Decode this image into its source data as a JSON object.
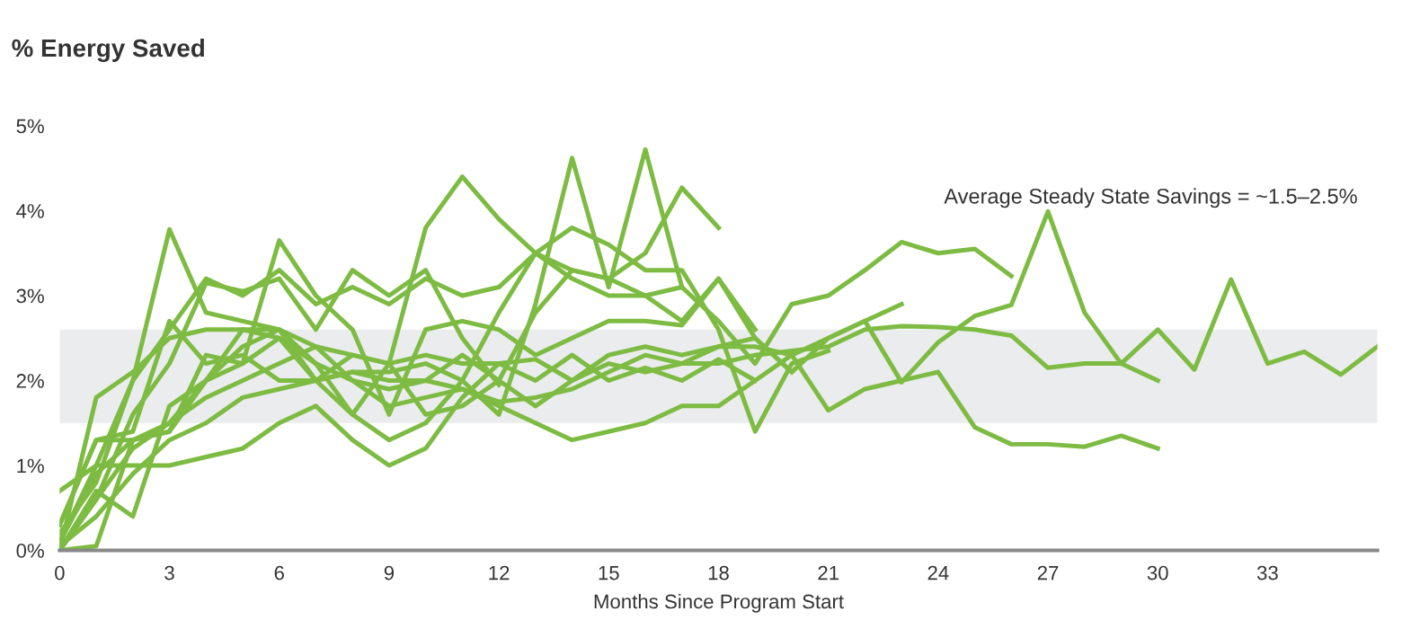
{
  "chart_data": {
    "type": "line",
    "title": "% Energy Saved",
    "xlabel": "Months Since Program Start",
    "xlim": [
      0,
      36
    ],
    "xticks": [
      0,
      3,
      6,
      9,
      12,
      15,
      18,
      21,
      24,
      27,
      30,
      33
    ],
    "ylim": [
      0,
      5
    ],
    "yticks": [
      {
        "value": 0,
        "label": "0%"
      },
      {
        "value": 1,
        "label": "1%"
      },
      {
        "value": 2,
        "label": "2%"
      },
      {
        "value": 3,
        "label": "3%"
      },
      {
        "value": 4,
        "label": "4%"
      },
      {
        "value": 5,
        "label": "5%"
      }
    ],
    "grid": false,
    "legend": false,
    "marker": "none",
    "line_style": "solid",
    "annotations": [
      "Average Steady State Savings = ~1.5–2.5%"
    ],
    "bands": [
      {
        "axis": "y",
        "from": 1.5,
        "to": 2.6,
        "color": "#ebeced"
      }
    ],
    "series": [
      {
        "color": "#7dbb42",
        "x": [
          0,
          1,
          2,
          3,
          4,
          5,
          6,
          7,
          8,
          9,
          10,
          11,
          12,
          13,
          14,
          15,
          16,
          17,
          18,
          19,
          20,
          21,
          22,
          23,
          24,
          25,
          26,
          27,
          28,
          29,
          30,
          31,
          32,
          33,
          34,
          35,
          36
        ],
        "values": [
          0.1,
          0.9,
          1.3,
          1.5,
          2.0,
          2.2,
          2.5,
          2.2,
          2.0,
          1.9,
          2.0,
          2.3,
          2.0,
          1.7,
          2.0,
          2.3,
          2.4,
          2.3,
          2.4,
          2.5,
          2.1,
          2.5,
          2.7,
          1.98,
          2.45,
          2.76,
          2.89,
          3.99,
          2.8,
          2.2,
          2.6,
          2.13,
          3.19,
          2.2,
          2.34,
          2.07,
          2.4
        ]
      },
      {
        "color": "#7dbb42",
        "x": [
          0,
          1,
          2,
          3,
          4,
          5,
          6,
          7,
          8,
          9,
          10,
          11,
          12,
          13,
          14,
          15,
          16,
          17,
          18,
          19,
          20,
          21,
          22,
          23,
          24,
          25,
          26,
          27,
          28,
          29,
          30
        ],
        "values": [
          0.0,
          0.6,
          1.2,
          1.5,
          1.8,
          2.0,
          2.2,
          2.4,
          2.0,
          1.7,
          1.8,
          1.9,
          1.7,
          1.5,
          1.3,
          1.4,
          1.5,
          1.7,
          1.7,
          2.0,
          2.3,
          1.65,
          1.9,
          2.0,
          2.1,
          1.45,
          1.25,
          1.25,
          1.22,
          1.35,
          1.2
        ]
      },
      {
        "color": "#7dbb42",
        "x": [
          0,
          1,
          2,
          3,
          4,
          5,
          6,
          7,
          8,
          9,
          10,
          11,
          12,
          13,
          14,
          15,
          16,
          17,
          18,
          19,
          20,
          21,
          22,
          23,
          24,
          25,
          26,
          27,
          28,
          29,
          30
        ],
        "values": [
          0.3,
          1.3,
          1.3,
          1.4,
          2.0,
          2.6,
          2.5,
          2.0,
          2.3,
          2.2,
          2.3,
          2.2,
          2.2,
          2.25,
          2.0,
          2.2,
          2.1,
          2.2,
          2.2,
          2.3,
          2.35,
          2.4,
          2.6,
          2.64,
          2.63,
          2.6,
          2.53,
          2.15,
          2.2,
          2.2,
          2.0
        ]
      },
      {
        "color": "#7dbb42",
        "x": [
          0,
          1,
          2,
          3,
          4,
          5,
          6,
          7,
          8,
          9,
          10,
          11,
          12,
          13,
          14,
          15,
          16,
          17,
          18,
          19,
          20,
          21,
          22,
          23,
          24,
          25,
          26
        ],
        "values": [
          0.2,
          0.8,
          2.0,
          2.6,
          3.2,
          3.0,
          3.3,
          2.9,
          3.1,
          2.9,
          3.2,
          3.0,
          3.1,
          3.5,
          3.3,
          3.2,
          3.0,
          3.1,
          2.7,
          2.2,
          2.9,
          3.0,
          3.3,
          3.63,
          3.5,
          3.55,
          3.23
        ]
      },
      {
        "color": "#7dbb42",
        "x": [
          0,
          1,
          2,
          3,
          4,
          5,
          6,
          7,
          8,
          9,
          10,
          11,
          12,
          13,
          14,
          15,
          16,
          17,
          18,
          19,
          20,
          21,
          22,
          23
        ],
        "values": [
          0.05,
          0.4,
          0.9,
          1.3,
          1.5,
          1.8,
          1.9,
          2.0,
          2.1,
          2.0,
          2.0,
          1.9,
          1.75,
          1.8,
          1.9,
          2.1,
          2.3,
          2.2,
          2.4,
          2.4,
          2.3,
          2.5,
          2.7,
          2.9
        ]
      },
      {
        "color": "#7dbb42",
        "x": [
          0,
          1,
          2,
          3,
          4,
          5,
          6,
          7,
          8,
          9,
          10,
          11,
          12,
          13,
          14,
          15,
          16,
          17,
          18
        ],
        "values": [
          0.0,
          1.8,
          2.1,
          2.5,
          2.6,
          2.6,
          2.6,
          2.4,
          2.3,
          2.2,
          1.6,
          1.7,
          2.0,
          2.8,
          3.3,
          3.2,
          3.5,
          4.27,
          3.8
        ]
      },
      {
        "color": "#7dbb42",
        "x": [
          0,
          1,
          2,
          3,
          4,
          5,
          6,
          7,
          8,
          9,
          10,
          11,
          12,
          13,
          14,
          15,
          16,
          17
        ],
        "values": [
          0.3,
          1.3,
          1.4,
          2.7,
          2.2,
          2.3,
          2.0,
          2.0,
          2.1,
          2.1,
          2.2,
          2.0,
          1.6,
          2.9,
          4.62,
          3.1,
          4.72,
          3.1
        ]
      },
      {
        "color": "#7dbb42",
        "x": [
          0,
          1,
          2,
          3,
          4,
          5,
          6,
          7,
          8,
          9,
          10,
          11,
          12,
          13,
          14,
          15,
          16,
          17,
          18,
          19,
          20,
          21
        ],
        "values": [
          0.1,
          1.0,
          2.0,
          3.78,
          2.8,
          2.7,
          2.6,
          2.2,
          1.6,
          1.3,
          1.5,
          2.0,
          2.8,
          3.5,
          3.8,
          3.6,
          3.3,
          3.3,
          2.6,
          1.4,
          2.2,
          2.35
        ]
      },
      {
        "color": "#7dbb42",
        "x": [
          0,
          1,
          2,
          3,
          4,
          5,
          6,
          7,
          8,
          9,
          10,
          11,
          12,
          13,
          14,
          15,
          16,
          17,
          18,
          19
        ],
        "values": [
          0.0,
          0.7,
          0.4,
          1.7,
          2.0,
          2.4,
          2.6,
          2.0,
          1.6,
          2.2,
          3.8,
          4.4,
          3.9,
          3.5,
          3.2,
          3.0,
          3.0,
          2.7,
          3.2,
          2.6
        ]
      },
      {
        "color": "#7dbb42",
        "x": [
          0,
          1,
          2,
          3,
          4,
          5,
          6,
          7,
          8,
          9,
          10,
          11,
          12,
          13,
          14,
          15,
          16,
          17,
          18,
          19,
          20
        ],
        "values": [
          0.0,
          0.05,
          1.3,
          1.4,
          2.3,
          2.2,
          3.65,
          3.0,
          2.6,
          1.6,
          2.6,
          2.7,
          2.6,
          2.3,
          2.5,
          2.7,
          2.7,
          2.65,
          3.2,
          2.5,
          2.1
        ]
      },
      {
        "color": "#7dbb42",
        "x": [
          0,
          1,
          2,
          3,
          4,
          5,
          6,
          7,
          8,
          9,
          10,
          11,
          12,
          13,
          14,
          15,
          16,
          17,
          18,
          19
        ],
        "values": [
          0.7,
          1.0,
          1.0,
          1.0,
          1.1,
          1.2,
          1.5,
          1.7,
          1.3,
          1.0,
          1.2,
          1.8,
          2.2,
          2.0,
          2.3,
          2.0,
          2.15,
          2.0,
          2.25,
          2.0
        ]
      },
      {
        "color": "#7dbb42",
        "x": [
          0,
          1,
          2,
          3,
          4,
          5,
          6,
          7,
          8,
          9,
          10,
          11,
          12
        ],
        "values": [
          0.0,
          0.6,
          1.6,
          2.2,
          3.15,
          3.05,
          3.2,
          2.6,
          3.3,
          3.0,
          3.3,
          2.5,
          1.95
        ]
      }
    ]
  }
}
